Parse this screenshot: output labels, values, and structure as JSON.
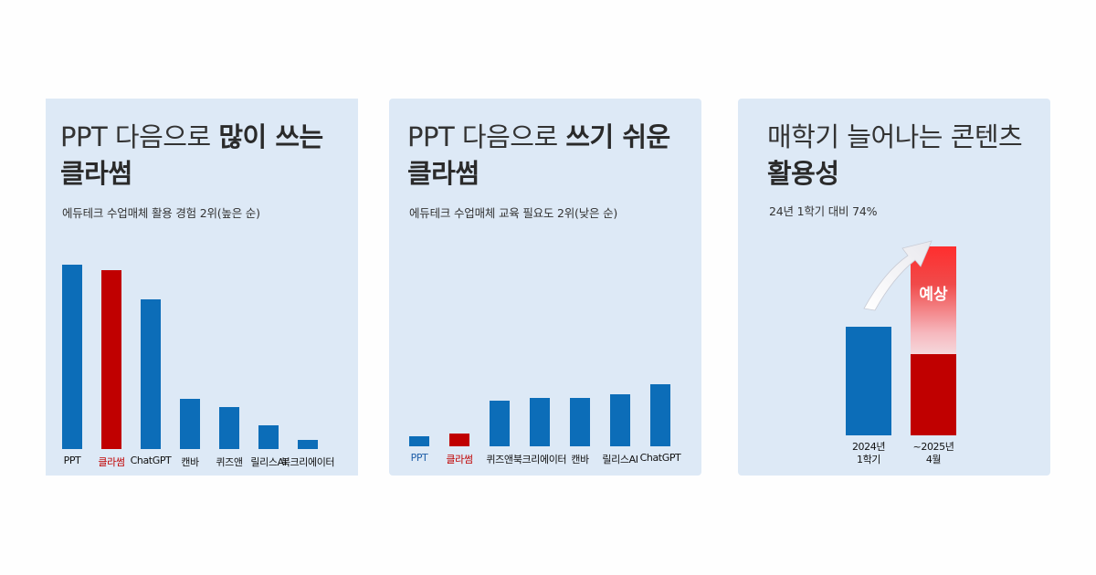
{
  "colors": {
    "blue": "#0c6db8",
    "red": "#c00000",
    "card_bg": "#dde9f6",
    "label_blue": "#1f5fa8",
    "label_red": "#c00000"
  },
  "cards": [
    {
      "title_plain": "PPT 다음으로 ",
      "title_bold1": "많이 쓰는",
      "title_bold2": "클라썸",
      "subtitle": "에듀테크 수업매체 활용 경험 2위(높은 순)"
    },
    {
      "title_plain": "PPT 다음으로 ",
      "title_bold1": "쓰기 쉬운",
      "title_bold2": "클라썸",
      "subtitle": "에듀테크 수업매체 교육 필요도 2위(낮은 순)"
    },
    {
      "title_plain": "매학기 늘어나는 콘텐츠",
      "title_bold1": "",
      "title_bold2": "활용성",
      "subtitle": "24년 1학기 대비 74%",
      "badge": "예상"
    }
  ],
  "chart_data": [
    {
      "type": "bar",
      "categories": [
        "PPT",
        "클라썸",
        "ChatGPT",
        "캔바",
        "퀴즈앤",
        "릴리스AI",
        "북크리에이터"
      ],
      "values": [
        100,
        97,
        81,
        27,
        23,
        13,
        5
      ],
      "highlight": "클라썸",
      "ylim": [
        0,
        100
      ]
    },
    {
      "type": "bar",
      "categories": [
        "PPT",
        "클라썸",
        "퀴즈앤",
        "북크리에이터",
        "캔바",
        "릴리스AI",
        "ChatGPT"
      ],
      "values": [
        6,
        8,
        28,
        30,
        30,
        32,
        38
      ],
      "highlight": "클라썸",
      "ylim": [
        0,
        100
      ]
    },
    {
      "type": "bar",
      "categories": [
        "2024년\n1학기",
        "~2025년\n4월"
      ],
      "values": [
        100,
        174
      ],
      "ylim": [
        0,
        174
      ]
    }
  ]
}
